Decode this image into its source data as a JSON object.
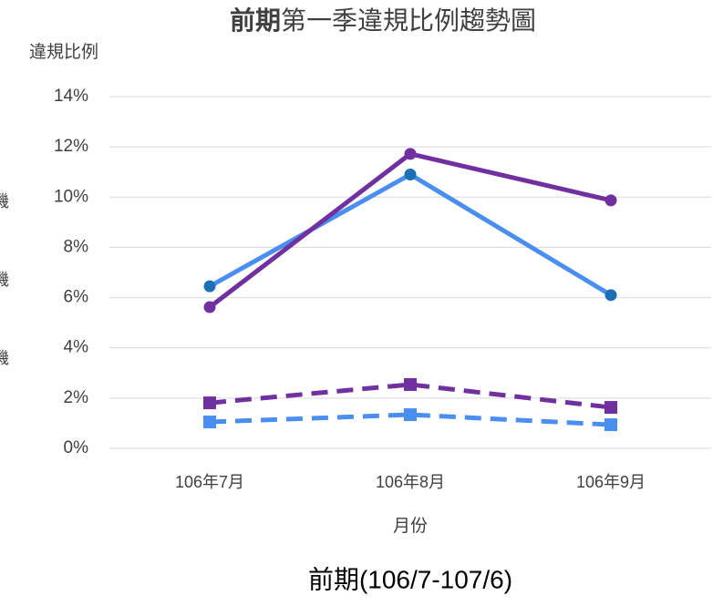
{
  "chart_data": {
    "type": "line",
    "title_bold": "前期",
    "title_rest": "第一季違規比例趨勢圖",
    "y_label": "違規比例",
    "x_label": "月份",
    "subtitle": "前期(106/7-107/6)",
    "legend_partial": [
      "機",
      "機",
      "機"
    ],
    "categories": [
      "106年7月",
      "106年8月",
      "106年9月"
    ],
    "series": [
      {
        "color": "#4a8ef0",
        "marker_color": "#1a6fb5",
        "marker": "circle",
        "dashed": false,
        "values": [
          6.45,
          10.9,
          6.1
        ]
      },
      {
        "color": "#7030a0",
        "marker_color": "#7030a0",
        "marker": "circle",
        "dashed": false,
        "values": [
          5.62,
          11.72,
          9.87
        ]
      },
      {
        "color": "#7030a0",
        "marker_color": "#7030a0",
        "marker": "square",
        "dashed": true,
        "values": [
          1.81,
          2.54,
          1.63
        ]
      },
      {
        "color": "#4a8ef0",
        "marker_color": "#4a8ef0",
        "marker": "square",
        "dashed": true,
        "values": [
          1.05,
          1.34,
          0.94
        ]
      }
    ],
    "ylim": [
      0,
      14
    ],
    "yticks": [
      {
        "value": 0,
        "label": "0%"
      },
      {
        "value": 2,
        "label": "2%"
      },
      {
        "value": 4,
        "label": "4%"
      },
      {
        "value": 6,
        "label": "6%"
      },
      {
        "value": 8,
        "label": "8%"
      },
      {
        "value": 10,
        "label": "10%"
      },
      {
        "value": 12,
        "label": "12%"
      },
      {
        "value": 14,
        "label": "14%"
      }
    ],
    "grid": true
  }
}
